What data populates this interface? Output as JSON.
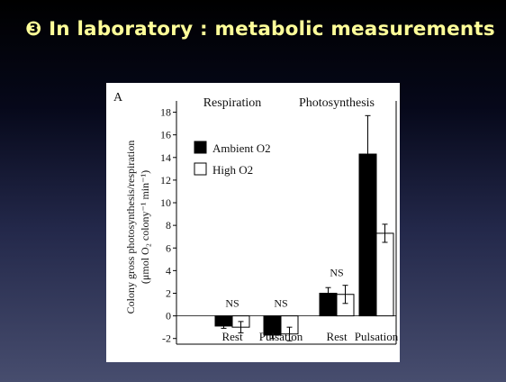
{
  "slide": {
    "title": "❸ In laboratory : metabolic measurements"
  },
  "colors": {
    "title": "#ffff99",
    "ambient_fill": "#000000",
    "high_fill": "#ffffff",
    "panel": "#ffffff"
  },
  "chart_data": {
    "type": "bar",
    "panel_label": "A",
    "ylabel_line1": "Colony gross photosynthesis/respiration",
    "ylabel_line2": "(μmol O₂ colony⁻¹ min⁻¹)",
    "ylim": [
      -2.5,
      19
    ],
    "yticks": [
      -2,
      0,
      2,
      4,
      6,
      8,
      10,
      12,
      14,
      16,
      18
    ],
    "groups": [
      "Respiration",
      "Photosynthesis"
    ],
    "categories": [
      "Rest",
      "Pulsation",
      "Rest",
      "Pulsation"
    ],
    "annotations": [
      "NS",
      "NS",
      "NS",
      ""
    ],
    "legend": [
      "Ambient O2",
      "High O2"
    ],
    "series": [
      {
        "name": "Ambient O2",
        "values": [
          -0.9,
          -1.7,
          2.0,
          14.3
        ],
        "errors": [
          0.2,
          0.3,
          0.5,
          3.4
        ]
      },
      {
        "name": "High O2",
        "values": [
          -1.0,
          -1.6,
          1.9,
          7.3
        ],
        "errors": [
          0.5,
          0.6,
          0.8,
          0.8
        ]
      }
    ]
  }
}
